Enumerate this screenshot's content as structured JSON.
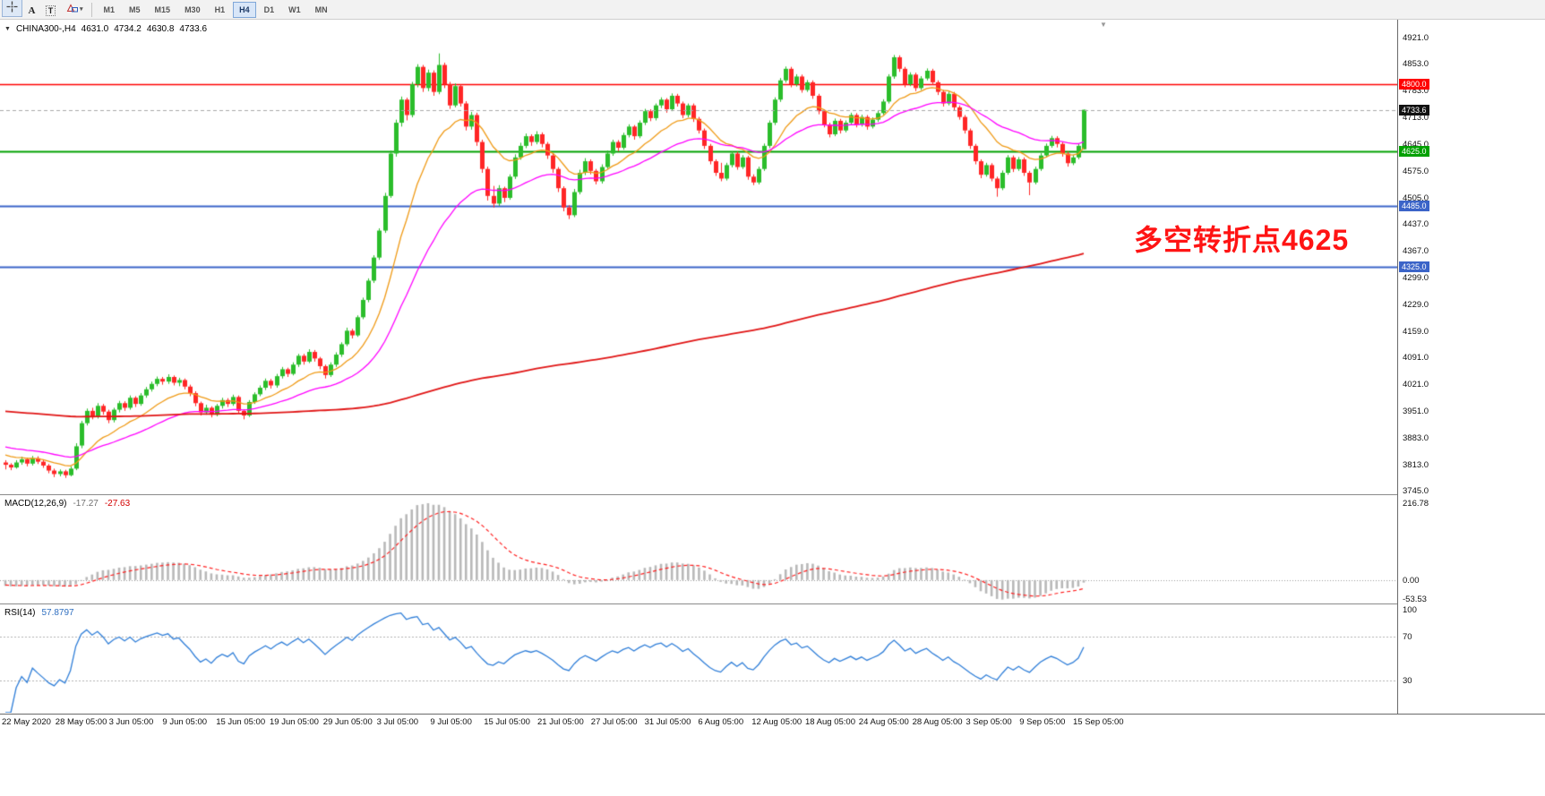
{
  "toolbar": {
    "tools": [
      {
        "id": "crosshair",
        "label": "",
        "pressed": true
      },
      {
        "id": "text",
        "label": "A",
        "pressed": false
      },
      {
        "id": "text-label",
        "label": "T",
        "pressed": false
      },
      {
        "id": "shapes",
        "label": "",
        "pressed": false
      }
    ],
    "timeframes": [
      "M1",
      "M5",
      "M15",
      "M30",
      "H1",
      "H4",
      "D1",
      "W1",
      "MN"
    ],
    "active_timeframe": "H4"
  },
  "chart": {
    "header": {
      "symbol_period": "CHINA300-,H4",
      "open": "4631.0",
      "high": "4734.2",
      "low": "4630.8",
      "close": "4733.6"
    },
    "annotation": {
      "text": "多空转折点4625",
      "color": "#ff1414"
    },
    "colors": {
      "up": "#2bbd2b",
      "down": "#ff2626"
    },
    "price_axis": {
      "top_price": 4967.5,
      "bottom_price": 3735.5,
      "labels": [
        "4921.0",
        "4853.0",
        "4783.0",
        "4713.0",
        "4645.0",
        "4575.0",
        "4505.0",
        "4437.0",
        "4367.0",
        "4299.0",
        "4229.0",
        "4159.0",
        "4091.0",
        "4021.0",
        "3951.0",
        "3883.0",
        "3813.0",
        "3745.0"
      ]
    },
    "levels": [
      {
        "price": 4800.0,
        "label": "4800.0",
        "color": "#ff0000",
        "width": 1.4
      },
      {
        "price": 4733.6,
        "label": "4733.6",
        "color": "#a8a8a8",
        "tag_color": "#111111",
        "width": 1,
        "current": true
      },
      {
        "price": 4625.0,
        "label": "4625.0",
        "color": "#00a000",
        "width": 1.8
      },
      {
        "price": 4485.0,
        "label": "4485.0",
        "color": "#3b64c8",
        "width": 1.8
      },
      {
        "price": 4325.0,
        "label": "4325.0",
        "color": "#3b64c8",
        "width": 1.8
      }
    ],
    "ma": [
      {
        "period": 14,
        "type": "ema",
        "color": "#ef9a16",
        "width": 1.3
      },
      {
        "period": 34,
        "type": "ema",
        "color": "#ff00ff",
        "width": 1.3
      },
      {
        "period": 230,
        "type": "sma",
        "color": "#e01515",
        "width": 1.8
      }
    ],
    "warmup": {
      "start": 4080,
      "end": 3820,
      "count": 120,
      "amp": 14,
      "cycles": 2.5
    },
    "candles": [
      [
        3818,
        3824,
        3800,
        3812
      ],
      [
        3812,
        3816,
        3798,
        3805
      ],
      [
        3805,
        3824,
        3802,
        3818
      ],
      [
        3818,
        3833,
        3812,
        3826
      ],
      [
        3826,
        3830,
        3808,
        3815
      ],
      [
        3815,
        3835,
        3810,
        3829
      ],
      [
        3829,
        3834,
        3814,
        3820
      ],
      [
        3820,
        3826,
        3804,
        3810
      ],
      [
        3810,
        3814,
        3790,
        3797
      ],
      [
        3797,
        3802,
        3780,
        3788
      ],
      [
        3788,
        3800,
        3782,
        3795
      ],
      [
        3795,
        3799,
        3778,
        3785
      ],
      [
        3785,
        3808,
        3782,
        3802
      ],
      [
        3802,
        3868,
        3798,
        3860
      ],
      [
        3862,
        3926,
        3855,
        3920
      ],
      [
        3920,
        3958,
        3914,
        3952
      ],
      [
        3952,
        3960,
        3930,
        3938
      ],
      [
        3938,
        3972,
        3932,
        3965
      ],
      [
        3965,
        3970,
        3942,
        3950
      ],
      [
        3950,
        3955,
        3920,
        3928
      ],
      [
        3928,
        3960,
        3922,
        3955
      ],
      [
        3955,
        3978,
        3948,
        3972
      ],
      [
        3972,
        3977,
        3952,
        3960
      ],
      [
        3960,
        3992,
        3955,
        3986
      ],
      [
        3986,
        3990,
        3962,
        3970
      ],
      [
        3970,
        3998,
        3965,
        3992
      ],
      [
        3992,
        4014,
        3986,
        4008
      ],
      [
        4008,
        4028,
        4002,
        4022
      ],
      [
        4022,
        4041,
        4016,
        4035
      ],
      [
        4035,
        4040,
        4020,
        4028
      ],
      [
        4028,
        4047,
        4022,
        4040
      ],
      [
        4040,
        4044,
        4018,
        4025
      ],
      [
        4025,
        4038,
        4016,
        4032
      ],
      [
        4032,
        4036,
        4008,
        4015
      ],
      [
        4015,
        4020,
        3990,
        3998
      ],
      [
        3998,
        4003,
        3964,
        3972
      ],
      [
        3972,
        3976,
        3940,
        3948
      ],
      [
        3948,
        3968,
        3942,
        3960
      ],
      [
        3960,
        3964,
        3935,
        3942
      ],
      [
        3942,
        3970,
        3938,
        3965
      ],
      [
        3965,
        3986,
        3958,
        3980
      ],
      [
        3980,
        3985,
        3962,
        3970
      ],
      [
        3970,
        3994,
        3965,
        3988
      ],
      [
        3988,
        3992,
        3945,
        3952
      ],
      [
        3952,
        3956,
        3930,
        3940
      ],
      [
        3940,
        3980,
        3936,
        3975
      ],
      [
        3975,
        4000,
        3970,
        3995
      ],
      [
        3995,
        4018,
        3990,
        4012
      ],
      [
        4012,
        4036,
        4006,
        4030
      ],
      [
        4030,
        4035,
        4010,
        4018
      ],
      [
        4018,
        4048,
        4012,
        4042
      ],
      [
        4042,
        4066,
        4036,
        4060
      ],
      [
        4060,
        4064,
        4040,
        4048
      ],
      [
        4048,
        4078,
        4044,
        4072
      ],
      [
        4072,
        4100,
        4066,
        4095
      ],
      [
        4095,
        4100,
        4072,
        4080
      ],
      [
        4080,
        4112,
        4076,
        4105
      ],
      [
        4105,
        4110,
        4080,
        4088
      ],
      [
        4088,
        4092,
        4060,
        4068
      ],
      [
        4068,
        4072,
        4036,
        4045
      ],
      [
        4045,
        4078,
        4040,
        4072
      ],
      [
        4072,
        4104,
        4066,
        4098
      ],
      [
        4098,
        4130,
        4092,
        4125
      ],
      [
        4125,
        4168,
        4120,
        4160
      ],
      [
        4160,
        4165,
        4140,
        4148
      ],
      [
        4148,
        4200,
        4144,
        4195
      ],
      [
        4195,
        4246,
        4190,
        4240
      ],
      [
        4240,
        4296,
        4234,
        4290
      ],
      [
        4290,
        4356,
        4284,
        4350
      ],
      [
        4350,
        4426,
        4344,
        4420
      ],
      [
        4420,
        4518,
        4414,
        4510
      ],
      [
        4510,
        4628,
        4505,
        4620
      ],
      [
        4620,
        4708,
        4612,
        4700
      ],
      [
        4700,
        4768,
        4690,
        4760
      ],
      [
        4760,
        4765,
        4706,
        4720
      ],
      [
        4720,
        4806,
        4714,
        4800
      ],
      [
        4800,
        4852,
        4792,
        4845
      ],
      [
        4845,
        4850,
        4780,
        4790
      ],
      [
        4790,
        4838,
        4782,
        4830
      ],
      [
        4830,
        4836,
        4770,
        4780
      ],
      [
        4780,
        4880,
        4774,
        4850
      ],
      [
        4850,
        4856,
        4790,
        4800
      ],
      [
        4800,
        4806,
        4736,
        4745
      ],
      [
        4745,
        4802,
        4740,
        4795
      ],
      [
        4795,
        4800,
        4742,
        4750
      ],
      [
        4750,
        4756,
        4680,
        4690
      ],
      [
        4690,
        4728,
        4682,
        4720
      ],
      [
        4720,
        4726,
        4640,
        4650
      ],
      [
        4650,
        4656,
        4570,
        4580
      ],
      [
        4580,
        4586,
        4498,
        4510
      ],
      [
        4510,
        4536,
        4480,
        4490
      ],
      [
        4490,
        4538,
        4484,
        4530
      ],
      [
        4530,
        4534,
        4494,
        4505
      ],
      [
        4505,
        4566,
        4500,
        4560
      ],
      [
        4560,
        4618,
        4554,
        4610
      ],
      [
        4610,
        4648,
        4604,
        4640
      ],
      [
        4640,
        4672,
        4634,
        4665
      ],
      [
        4665,
        4670,
        4640,
        4650
      ],
      [
        4650,
        4678,
        4644,
        4670
      ],
      [
        4670,
        4675,
        4636,
        4645
      ],
      [
        4645,
        4650,
        4606,
        4615
      ],
      [
        4615,
        4620,
        4570,
        4580
      ],
      [
        4580,
        4585,
        4520,
        4530
      ],
      [
        4530,
        4535,
        4470,
        4480
      ],
      [
        4480,
        4486,
        4450,
        4460
      ],
      [
        4460,
        4528,
        4455,
        4520
      ],
      [
        4520,
        4578,
        4514,
        4570
      ],
      [
        4570,
        4608,
        4564,
        4600
      ],
      [
        4600,
        4605,
        4566,
        4575
      ],
      [
        4575,
        4580,
        4540,
        4548
      ],
      [
        4548,
        4592,
        4542,
        4585
      ],
      [
        4585,
        4628,
        4580,
        4620
      ],
      [
        4620,
        4656,
        4614,
        4650
      ],
      [
        4650,
        4655,
        4626,
        4635
      ],
      [
        4635,
        4674,
        4630,
        4668
      ],
      [
        4668,
        4696,
        4662,
        4690
      ],
      [
        4690,
        4694,
        4656,
        4665
      ],
      [
        4665,
        4706,
        4660,
        4700
      ],
      [
        4700,
        4736,
        4694,
        4730
      ],
      [
        4730,
        4735,
        4704,
        4712
      ],
      [
        4712,
        4750,
        4706,
        4745
      ],
      [
        4745,
        4766,
        4738,
        4760
      ],
      [
        4760,
        4764,
        4726,
        4735
      ],
      [
        4735,
        4776,
        4730,
        4770
      ],
      [
        4770,
        4775,
        4742,
        4750
      ],
      [
        4750,
        4755,
        4712,
        4720
      ],
      [
        4720,
        4750,
        4714,
        4745
      ],
      [
        4745,
        4750,
        4702,
        4710
      ],
      [
        4710,
        4715,
        4672,
        4680
      ],
      [
        4680,
        4685,
        4632,
        4640
      ],
      [
        4640,
        4645,
        4592,
        4600
      ],
      [
        4600,
        4605,
        4562,
        4570
      ],
      [
        4570,
        4596,
        4548,
        4555
      ],
      [
        4555,
        4596,
        4550,
        4590
      ],
      [
        4590,
        4626,
        4584,
        4620
      ],
      [
        4620,
        4625,
        4578,
        4585
      ],
      [
        4585,
        4616,
        4580,
        4610
      ],
      [
        4610,
        4614,
        4552,
        4560
      ],
      [
        4560,
        4566,
        4538,
        4545
      ],
      [
        4545,
        4586,
        4540,
        4580
      ],
      [
        4580,
        4646,
        4575,
        4640
      ],
      [
        4640,
        4706,
        4634,
        4700
      ],
      [
        4700,
        4766,
        4694,
        4760
      ],
      [
        4760,
        4816,
        4754,
        4810
      ],
      [
        4810,
        4846,
        4804,
        4840
      ],
      [
        4840,
        4845,
        4792,
        4800
      ],
      [
        4800,
        4826,
        4794,
        4820
      ],
      [
        4820,
        4825,
        4778,
        4785
      ],
      [
        4785,
        4811,
        4780,
        4805
      ],
      [
        4805,
        4810,
        4762,
        4770
      ],
      [
        4770,
        4775,
        4722,
        4730
      ],
      [
        4730,
        4735,
        4688,
        4695
      ],
      [
        4695,
        4700,
        4662,
        4670
      ],
      [
        4670,
        4711,
        4665,
        4705
      ],
      [
        4705,
        4710,
        4672,
        4680
      ],
      [
        4680,
        4706,
        4675,
        4700
      ],
      [
        4700,
        4726,
        4695,
        4720
      ],
      [
        4720,
        4725,
        4688,
        4695
      ],
      [
        4695,
        4721,
        4690,
        4715
      ],
      [
        4715,
        4720,
        4682,
        4690
      ],
      [
        4690,
        4714,
        4685,
        4708
      ],
      [
        4708,
        4731,
        4702,
        4725
      ],
      [
        4725,
        4761,
        4720,
        4755
      ],
      [
        4755,
        4826,
        4750,
        4820
      ],
      [
        4820,
        4876,
        4814,
        4870
      ],
      [
        4870,
        4875,
        4832,
        4840
      ],
      [
        4840,
        4845,
        4792,
        4800
      ],
      [
        4800,
        4831,
        4795,
        4825
      ],
      [
        4825,
        4830,
        4782,
        4790
      ],
      [
        4790,
        4821,
        4785,
        4815
      ],
      [
        4815,
        4841,
        4810,
        4835
      ],
      [
        4835,
        4840,
        4798,
        4805
      ],
      [
        4805,
        4810,
        4772,
        4780
      ],
      [
        4780,
        4785,
        4742,
        4750
      ],
      [
        4750,
        4781,
        4745,
        4775
      ],
      [
        4775,
        4780,
        4732,
        4740
      ],
      [
        4740,
        4745,
        4708,
        4715
      ],
      [
        4715,
        4720,
        4672,
        4680
      ],
      [
        4680,
        4685,
        4632,
        4640
      ],
      [
        4640,
        4645,
        4592,
        4600
      ],
      [
        4600,
        4605,
        4556,
        4565
      ],
      [
        4565,
        4596,
        4560,
        4590
      ],
      [
        4590,
        4595,
        4548,
        4555
      ],
      [
        4555,
        4560,
        4508,
        4530
      ],
      [
        4530,
        4576,
        4525,
        4570
      ],
      [
        4570,
        4616,
        4565,
        4610
      ],
      [
        4610,
        4615,
        4572,
        4580
      ],
      [
        4580,
        4611,
        4575,
        4605
      ],
      [
        4605,
        4610,
        4562,
        4570
      ],
      [
        4570,
        4575,
        4512,
        4545
      ],
      [
        4545,
        4586,
        4540,
        4580
      ],
      [
        4580,
        4621,
        4575,
        4615
      ],
      [
        4615,
        4646,
        4610,
        4640
      ],
      [
        4640,
        4666,
        4635,
        4660
      ],
      [
        4660,
        4665,
        4636,
        4645
      ],
      [
        4645,
        4650,
        4612,
        4620
      ],
      [
        4620,
        4625,
        4586,
        4595
      ],
      [
        4595,
        4616,
        4590,
        4610
      ],
      [
        4610,
        4646,
        4605,
        4640
      ],
      [
        4631,
        4734.2,
        4630.8,
        4733.6
      ]
    ]
  },
  "indicators": {
    "macd": {
      "label": "MACD(12,26,9)",
      "main_value": "-17.27",
      "signal_value": "-27.63",
      "fast": 12,
      "slow": 26,
      "signal_period": 9,
      "hist_color": "#b8b8b8",
      "signal_color": "#ff2020",
      "axis": {
        "max": 216.78,
        "min": -53.53,
        "labels": [
          "216.78",
          "0.00",
          "-53.53"
        ]
      }
    },
    "rsi": {
      "label": "RSI(14)",
      "value": "57.8797",
      "period": 14,
      "color": "#2f7ed8",
      "levels": [
        70,
        30
      ],
      "axis_labels": [
        "100",
        "70",
        "30"
      ]
    }
  },
  "time_axis": {
    "labels": [
      "22 May 2020",
      "28 May 05:00",
      "3 Jun 05:00",
      "9 Jun 05:00",
      "15 Jun 05:00",
      "19 Jun 05:00",
      "29 Jun 05:00",
      "3 Jul 05:00",
      "9 Jul 05:00",
      "15 Jul 05:00",
      "21 Jul 05:00",
      "27 Jul 05:00",
      "31 Jul 05:00",
      "6 Aug 05:00",
      "12 Aug 05:00",
      "18 Aug 05:00",
      "24 Aug 05:00",
      "28 Aug 05:00",
      "3 Sep 05:00",
      "9 Sep 05:00",
      "15 Sep 05:00"
    ]
  }
}
